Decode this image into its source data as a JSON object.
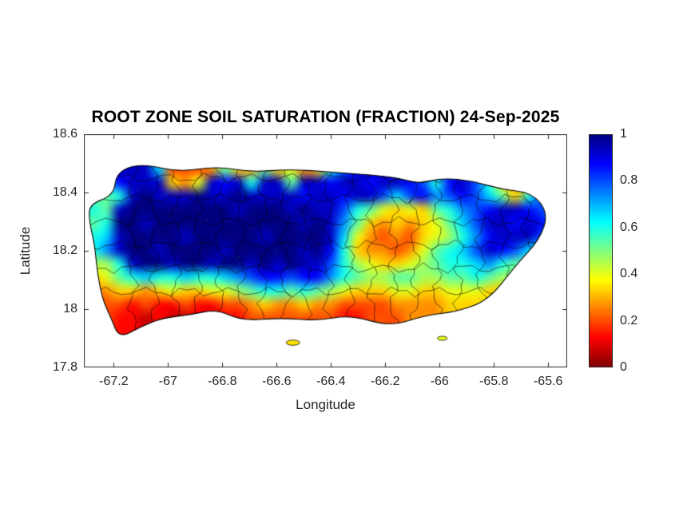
{
  "chart_data": {
    "type": "heatmap",
    "title": "ROOT ZONE SOIL SATURATION (FRACTION) 24-Sep-2025",
    "xlabel": "Longitude",
    "ylabel": "Latitude",
    "xlim": [
      -67.31,
      -65.53
    ],
    "ylim": [
      17.8,
      18.6
    ],
    "grid_on": false,
    "legend_position": "colorbar-right",
    "xticks": {
      "values": [
        -67.2,
        -67,
        -66.8,
        -66.6,
        -66.4,
        -66.2,
        -66,
        -65.8,
        -65.6
      ],
      "labels": [
        "-67.2",
        "-67",
        "-66.8",
        "-66.6",
        "-66.4",
        "-66.2",
        "-66",
        "-65.8",
        "-65.6"
      ]
    },
    "yticks": {
      "values": [
        18.6,
        18.4,
        18.2,
        18,
        17.8
      ],
      "labels": [
        "18.6",
        "18.4",
        "18.2",
        "18",
        "17.8"
      ]
    },
    "colorbar": {
      "colormap": "jet-reversed (1 = dark blue / saturated, 0 = dark red / dry)",
      "ticks": {
        "values": [
          1,
          0.8,
          0.6,
          0.4,
          0.2,
          0
        ],
        "labels": [
          "1",
          "0.8",
          "0.6",
          "0.4",
          "0.2",
          "0"
        ]
      },
      "stops": [
        {
          "value": 1,
          "color": "#000080"
        },
        {
          "value": 0.875,
          "color": "#0000ff"
        },
        {
          "value": 0.625,
          "color": "#00ffff"
        },
        {
          "value": 0.375,
          "color": "#ffff00"
        },
        {
          "value": 0.125,
          "color": "#ff0000"
        },
        {
          "value": 0,
          "color": "#800000"
        }
      ]
    },
    "grid": {
      "description": "Root zone soil saturation fraction raster over Puerto Rico; each hex char 0-f maps to value char/15 (0=dry dark red, 1=saturated dark blue); rows listed north to south",
      "lon_range": [
        -67.3,
        -65.55
      ],
      "lat_range": [
        17.9,
        18.55
      ],
      "nx": 36,
      "ny": 14,
      "rows": [
        "eeeeea3334854856459cdedcdedcdedc9999",
        "eeeeea3334854856459cdedcdedcdedc9999",
        "bbdeee546ede9ee8eedeedeedc9dec95439c",
        "889efeeefeefeeeedeedeecacdbcdca859ce",
        "98effffffffefffefeec98656589bcdeedcb",
        "89ffefffffffffffefeb85454568aceededc",
        "9aeffffefffffeffffea643435679bdeeeca",
        "9beffeffffefffffefd954434689acedca99",
        "779effeffeffefefeec9765567899ab98888",
        "5689a99a99abcddcddb98778877889877777",
        "445545655667899898765556655666555666",
        "333232232233454454433334444555666777",
        "432212112122333333322333444556677788",
        "432212112122333333322333444556677788"
      ]
    }
  },
  "geo": {
    "region": "Puerto Rico",
    "island_outline": [
      [
        -67.19,
        18.47
      ],
      [
        -67.1,
        18.5
      ],
      [
        -66.96,
        18.47
      ],
      [
        -66.82,
        18.49
      ],
      [
        -66.7,
        18.47
      ],
      [
        -66.55,
        18.48
      ],
      [
        -66.4,
        18.47
      ],
      [
        -66.25,
        18.46
      ],
      [
        -66.15,
        18.45
      ],
      [
        -66.08,
        18.43
      ],
      [
        -65.99,
        18.45
      ],
      [
        -65.88,
        18.44
      ],
      [
        -65.77,
        18.41
      ],
      [
        -65.66,
        18.4
      ],
      [
        -65.6,
        18.33
      ],
      [
        -65.63,
        18.24
      ],
      [
        -65.72,
        18.15
      ],
      [
        -65.82,
        18.03
      ],
      [
        -65.94,
        17.99
      ],
      [
        -66.05,
        17.98
      ],
      [
        -66.18,
        17.94
      ],
      [
        -66.33,
        17.98
      ],
      [
        -66.45,
        17.96
      ],
      [
        -66.58,
        17.97
      ],
      [
        -66.73,
        17.96
      ],
      [
        -66.82,
        18.0
      ],
      [
        -66.92,
        17.98
      ],
      [
        -67.02,
        17.97
      ],
      [
        -67.1,
        17.94
      ],
      [
        -67.18,
        17.9
      ],
      [
        -67.21,
        17.97
      ],
      [
        -67.24,
        18.03
      ],
      [
        -67.26,
        18.12
      ],
      [
        -67.27,
        18.22
      ],
      [
        -67.29,
        18.3
      ],
      [
        -67.29,
        18.36
      ],
      [
        -67.2,
        18.39
      ]
    ],
    "islets": [
      {
        "lon": -66.54,
        "lat": 17.885,
        "rx": 0.025,
        "ry": 0.009,
        "value": 0.35
      },
      {
        "lon": -65.99,
        "lat": 17.9,
        "rx": 0.018,
        "ry": 0.007,
        "value": 0.4
      }
    ],
    "boundaries": {
      "vertical_lons": [
        -67.13,
        -67.05,
        -66.97,
        -66.89,
        -66.81,
        -66.73,
        -66.65,
        -66.57,
        -66.49,
        -66.41,
        -66.33,
        -66.25,
        -66.17,
        -66.09,
        -66.01,
        -65.93,
        -65.85,
        -65.76,
        -65.68
      ],
      "horizontal_lats": [
        18.06,
        18.14,
        18.22,
        18.3,
        18.38,
        18.45
      ]
    }
  },
  "style": {
    "axis_color": "#262626",
    "coastline_color": "#000000",
    "background": "#ffffff"
  }
}
